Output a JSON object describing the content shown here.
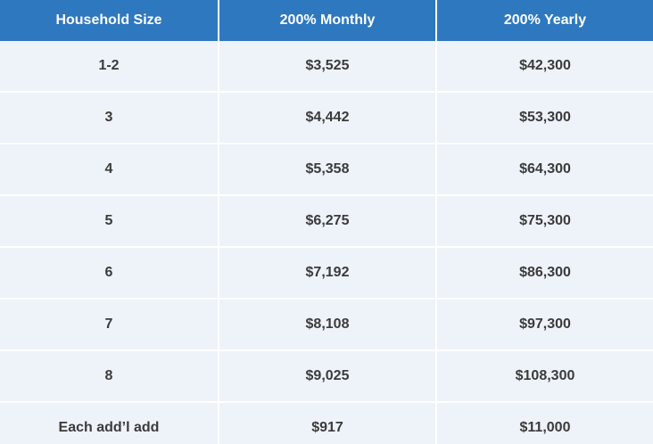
{
  "colors": {
    "header_bg": "#2e78bf",
    "header_text": "#ffffff",
    "row_bg": "#edf3f8",
    "row_text": "#3b3b3b",
    "divider": "#ffffff"
  },
  "table": {
    "columns": [
      "Household Size",
      "200% Monthly",
      "200% Yearly"
    ],
    "rows": [
      [
        "1-2",
        "$3,525",
        "$42,300"
      ],
      [
        "3",
        "$4,442",
        "$53,300"
      ],
      [
        "4",
        "$5,358",
        "$64,300"
      ],
      [
        "5",
        "$6,275",
        "$75,300"
      ],
      [
        "6",
        "$7,192",
        "$86,300"
      ],
      [
        "7",
        "$8,108",
        "$97,300"
      ],
      [
        "8",
        "$9,025",
        "$108,300"
      ],
      [
        "Each add’l add",
        "$917",
        "$11,000"
      ]
    ]
  },
  "chart_data": {
    "type": "table",
    "title": "",
    "columns": [
      "Household Size",
      "200% Monthly",
      "200% Yearly"
    ],
    "rows": [
      {
        "household_size": "1-2",
        "monthly_200pct": 3525,
        "yearly_200pct": 42300
      },
      {
        "household_size": "3",
        "monthly_200pct": 4442,
        "yearly_200pct": 53300
      },
      {
        "household_size": "4",
        "monthly_200pct": 5358,
        "yearly_200pct": 64300
      },
      {
        "household_size": "5",
        "monthly_200pct": 6275,
        "yearly_200pct": 75300
      },
      {
        "household_size": "6",
        "monthly_200pct": 7192,
        "yearly_200pct": 86300
      },
      {
        "household_size": "7",
        "monthly_200pct": 8108,
        "yearly_200pct": 97300
      },
      {
        "household_size": "8",
        "monthly_200pct": 9025,
        "yearly_200pct": 108300
      },
      {
        "household_size": "Each add’l add",
        "monthly_200pct": 917,
        "yearly_200pct": 11000
      }
    ],
    "layout_hints": {
      "header_bg": "#2e78bf",
      "row_bg": "#edf3f8",
      "grid": "white 2px separators",
      "text_align": "center"
    }
  }
}
